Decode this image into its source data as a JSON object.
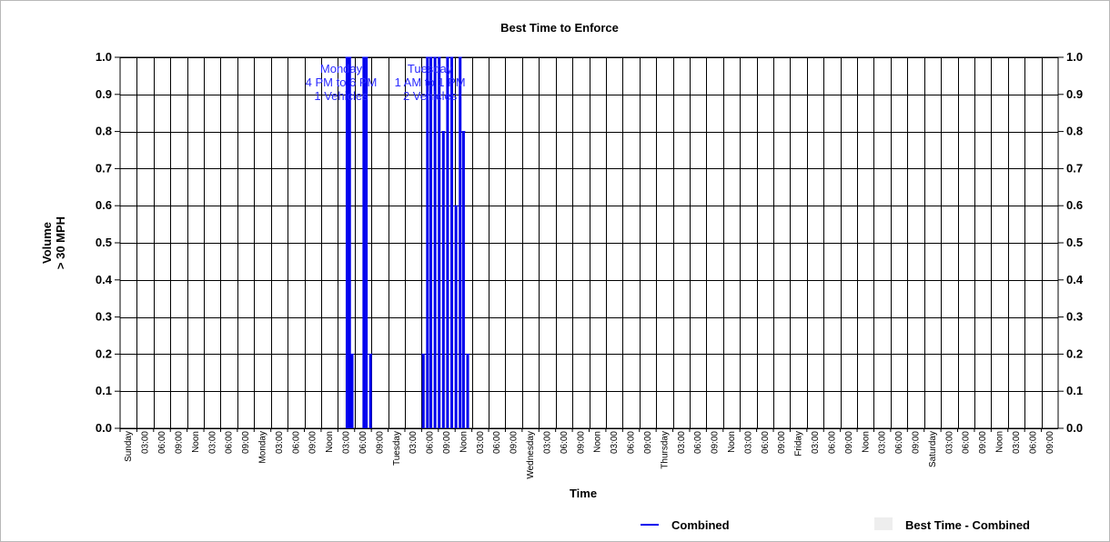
{
  "chart_data": {
    "type": "line",
    "title": "Best Time to Enforce",
    "xlabel": "Time",
    "ylabel_lines": [
      "Volume",
      "> 30 MPH"
    ],
    "ylim": [
      0,
      1
    ],
    "yticks": [
      "0.0",
      "0.1",
      "0.2",
      "0.3",
      "0.4",
      "0.5",
      "0.6",
      "0.7",
      "0.8",
      "0.9",
      "1.0"
    ],
    "grid": true,
    "x_unit_hours": 3,
    "x_tick_labels": [
      "Sunday",
      "03:00",
      "06:00",
      "09:00",
      "Noon",
      "03:00",
      "06:00",
      "09:00",
      "Monday",
      "03:00",
      "06:00",
      "09:00",
      "Noon",
      "03:00",
      "06:00",
      "09:00",
      "Tuesday",
      "03:00",
      "06:00",
      "09:00",
      "Noon",
      "03:00",
      "06:00",
      "09:00",
      "Wednesday",
      "03:00",
      "06:00",
      "09:00",
      "Noon",
      "03:00",
      "06:00",
      "09:00",
      "Thursday",
      "03:00",
      "06:00",
      "09:00",
      "Noon",
      "03:00",
      "06:00",
      "09:00",
      "Friday",
      "03:00",
      "06:00",
      "09:00",
      "Noon",
      "03:00",
      "06:00",
      "09:00",
      "Saturday",
      "03:00",
      "06:00",
      "09:00",
      "Noon",
      "03:00",
      "06:00",
      "09:00"
    ],
    "series": [
      {
        "name": "Combined",
        "color": "#0000ee",
        "spikes": [
          {
            "x": 13.55,
            "y": 1.0
          },
          {
            "x": 13.7,
            "y": 1.0
          },
          {
            "x": 13.85,
            "y": 0.2
          },
          {
            "x": 14.55,
            "y": 1.0
          },
          {
            "x": 14.7,
            "y": 1.0
          },
          {
            "x": 14.95,
            "y": 0.2
          },
          {
            "x": 18.1,
            "y": 0.2
          },
          {
            "x": 18.35,
            "y": 1.0
          },
          {
            "x": 18.55,
            "y": 1.0
          },
          {
            "x": 18.8,
            "y": 1.0
          },
          {
            "x": 19.05,
            "y": 1.0
          },
          {
            "x": 19.3,
            "y": 0.8
          },
          {
            "x": 19.55,
            "y": 1.0
          },
          {
            "x": 19.8,
            "y": 1.0
          },
          {
            "x": 20.05,
            "y": 0.6
          },
          {
            "x": 20.3,
            "y": 1.0
          },
          {
            "x": 20.5,
            "y": 0.8
          },
          {
            "x": 20.75,
            "y": 0.2
          }
        ]
      }
    ],
    "best_time_bands": [
      {
        "x_start": 13.35,
        "x_end": 14.0,
        "y": 0.2
      },
      {
        "x_start": 18.0,
        "x_end": 18.7,
        "y": 0.2
      },
      {
        "x_start": 19.2,
        "x_end": 19.6,
        "y": 0.2
      }
    ],
    "annotations": [
      {
        "x": 13.2,
        "lines": [
          "Monday",
          "4 PM to 6 PM",
          "1 Vehicles"
        ]
      },
      {
        "x": 18.5,
        "lines": [
          "Tuesday",
          "1 AM to 1 PM",
          "2 Vehicles"
        ]
      }
    ],
    "legend": {
      "position": "bottom",
      "items": [
        {
          "label": "Combined",
          "kind": "line",
          "color": "#0000ee"
        },
        {
          "label": "Best Time - Combined",
          "kind": "box",
          "color": "#eeeeee"
        }
      ]
    }
  }
}
